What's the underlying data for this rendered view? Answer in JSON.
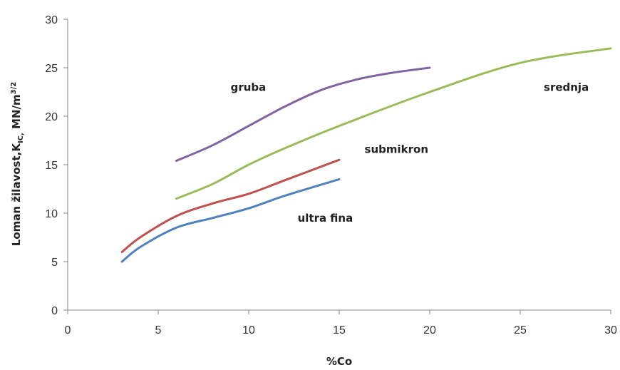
{
  "chart_data": {
    "type": "line",
    "title": "",
    "xlabel": "%Co",
    "ylabel_main": "Loman žilavost,K",
    "ylabel_sub": "IC,",
    "ylabel_unit": " MN/m",
    "ylabel_sup": "3/2",
    "xlim": [
      0,
      30
    ],
    "ylim": [
      0,
      30
    ],
    "xticks": [
      "0",
      "5",
      "10",
      "15",
      "20",
      "25",
      "30"
    ],
    "yticks": [
      "0",
      "5",
      "10",
      "15",
      "20",
      "25",
      "30"
    ],
    "grid": false,
    "legend": "none",
    "series": [
      {
        "name": "gruba",
        "color": "#8064a2",
        "points": [
          [
            6,
            15.4
          ],
          [
            8,
            17
          ],
          [
            10,
            19
          ],
          [
            12,
            21
          ],
          [
            14,
            22.7
          ],
          [
            16,
            23.8
          ],
          [
            18,
            24.5
          ],
          [
            20,
            25
          ]
        ]
      },
      {
        "name": "srednja",
        "color": "#9bbb59",
        "points": [
          [
            6,
            11.5
          ],
          [
            8,
            13
          ],
          [
            10,
            15
          ],
          [
            12,
            16.7
          ],
          [
            15,
            19
          ],
          [
            20,
            22.5
          ],
          [
            25,
            25.5
          ],
          [
            30,
            27
          ]
        ]
      },
      {
        "name": "submikron",
        "color": "#c0504d",
        "points": [
          [
            3,
            6
          ],
          [
            4,
            7.5
          ],
          [
            6,
            9.7
          ],
          [
            8,
            11
          ],
          [
            10,
            12
          ],
          [
            12,
            13.4
          ],
          [
            15,
            15.5
          ]
        ]
      },
      {
        "name": "ultra fina",
        "color": "#4f81bd",
        "points": [
          [
            3,
            5
          ],
          [
            4,
            6.5
          ],
          [
            6,
            8.5
          ],
          [
            8,
            9.5
          ],
          [
            10,
            10.5
          ],
          [
            12,
            11.8
          ],
          [
            15,
            13.5
          ]
        ]
      }
    ],
    "annotations": [
      {
        "text": "gruba",
        "x": 9,
        "y": 22.6
      },
      {
        "text": "srednja",
        "x": 26.3,
        "y": 22.6
      },
      {
        "text": "submikron",
        "x": 16.4,
        "y": 16.2
      },
      {
        "text": "ultra fina",
        "x": 12.7,
        "y": 9.1
      }
    ]
  }
}
